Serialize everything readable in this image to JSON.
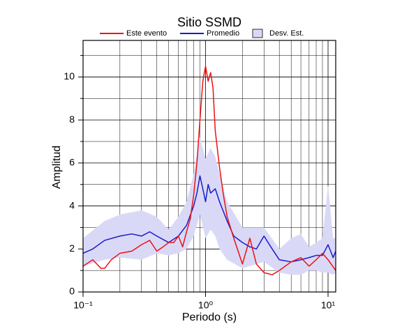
{
  "chart_data": {
    "type": "line",
    "title": "Sitio SSMD",
    "xlabel": "Periodo (s)",
    "ylabel": "Amplitud",
    "xscale": "log",
    "xlim": [
      0.1,
      11.55
    ],
    "ylim": [
      0,
      11.7
    ],
    "xticks": [
      {
        "value": 0.1,
        "label": "10⁻¹"
      },
      {
        "value": 1,
        "label": "10⁰"
      },
      {
        "value": 10,
        "label": "10¹"
      }
    ],
    "xminor_ticks": [
      0.2,
      0.3,
      0.4,
      0.5,
      0.6,
      0.7,
      0.8,
      0.9,
      2,
      3,
      4,
      5,
      6,
      7,
      8,
      9
    ],
    "yticks": [
      0,
      2,
      4,
      6,
      8,
      10
    ],
    "yminor_ticks": [
      1,
      3,
      5,
      7,
      9,
      11
    ],
    "grid": true,
    "legend": "top",
    "series": [
      {
        "name": "Este evento",
        "color": "#ee1111",
        "x": [
          0.1,
          0.12,
          0.14,
          0.15,
          0.17,
          0.2,
          0.25,
          0.3,
          0.35,
          0.4,
          0.45,
          0.5,
          0.55,
          0.6,
          0.65,
          0.7,
          0.75,
          0.8,
          0.85,
          0.9,
          0.95,
          1.0,
          1.05,
          1.1,
          1.15,
          1.2,
          1.3,
          1.4,
          1.5,
          1.7,
          2.0,
          2.3,
          2.6,
          3.0,
          3.5,
          4,
          5,
          6,
          7,
          8,
          9,
          10,
          11.55
        ],
        "values": [
          1.2,
          1.5,
          1.1,
          1.1,
          1.5,
          1.8,
          1.9,
          2.2,
          2.4,
          1.9,
          2.1,
          2.3,
          2.3,
          2.6,
          2.1,
          2.8,
          3.4,
          4.5,
          6.0,
          8.0,
          9.8,
          10.5,
          9.8,
          10.2,
          9.5,
          7.5,
          5.8,
          4.5,
          3.5,
          2.5,
          1.3,
          2.5,
          1.3,
          0.9,
          0.8,
          1.0,
          1.4,
          1.6,
          1.2,
          1.5,
          1.8,
          1.5,
          1.0
        ]
      },
      {
        "name": "Promedio",
        "color": "#1a1acc",
        "x": [
          0.1,
          0.12,
          0.15,
          0.2,
          0.25,
          0.3,
          0.35,
          0.4,
          0.5,
          0.6,
          0.7,
          0.8,
          0.85,
          0.9,
          0.95,
          1.0,
          1.05,
          1.1,
          1.2,
          1.3,
          1.5,
          1.7,
          2,
          2.3,
          2.6,
          3,
          3.5,
          4,
          5,
          6,
          7,
          8,
          9,
          10,
          11,
          11.55
        ],
        "values": [
          1.8,
          2.0,
          2.4,
          2.6,
          2.7,
          2.6,
          2.8,
          2.6,
          2.3,
          2.6,
          3.1,
          4.0,
          4.6,
          5.4,
          4.8,
          4.2,
          5.0,
          4.6,
          4.8,
          4.2,
          3.3,
          2.6,
          2.3,
          2.1,
          2.0,
          2.6,
          2.0,
          1.5,
          1.4,
          1.5,
          1.6,
          1.7,
          1.7,
          2.2,
          1.6,
          1.9
        ]
      },
      {
        "name": "Desv. Est.",
        "color": "#d9d9f7",
        "type": "band",
        "x": [
          0.1,
          0.15,
          0.2,
          0.3,
          0.4,
          0.5,
          0.6,
          0.7,
          0.8,
          0.9,
          1.0,
          1.1,
          1.2,
          1.3,
          1.5,
          2,
          3,
          4,
          5,
          6,
          7,
          8,
          9,
          10,
          11,
          11.55
        ],
        "upper": [
          2.5,
          3.3,
          3.6,
          3.8,
          3.5,
          2.9,
          3.5,
          4.2,
          5.5,
          7.2,
          6.2,
          6.7,
          6.3,
          5.5,
          4.2,
          3.0,
          3.0,
          2.0,
          2.5,
          2.7,
          2.1,
          2.3,
          2.5,
          5.0,
          2.5,
          2.5
        ],
        "lower": [
          1.2,
          1.5,
          1.6,
          1.5,
          1.8,
          1.7,
          1.8,
          2.0,
          2.6,
          3.6,
          2.5,
          2.9,
          2.6,
          2.0,
          1.5,
          1.1,
          1.4,
          0.9,
          0.8,
          0.8,
          1.0,
          1.0,
          0.9,
          0.9,
          0.8,
          0.9
        ]
      }
    ]
  }
}
